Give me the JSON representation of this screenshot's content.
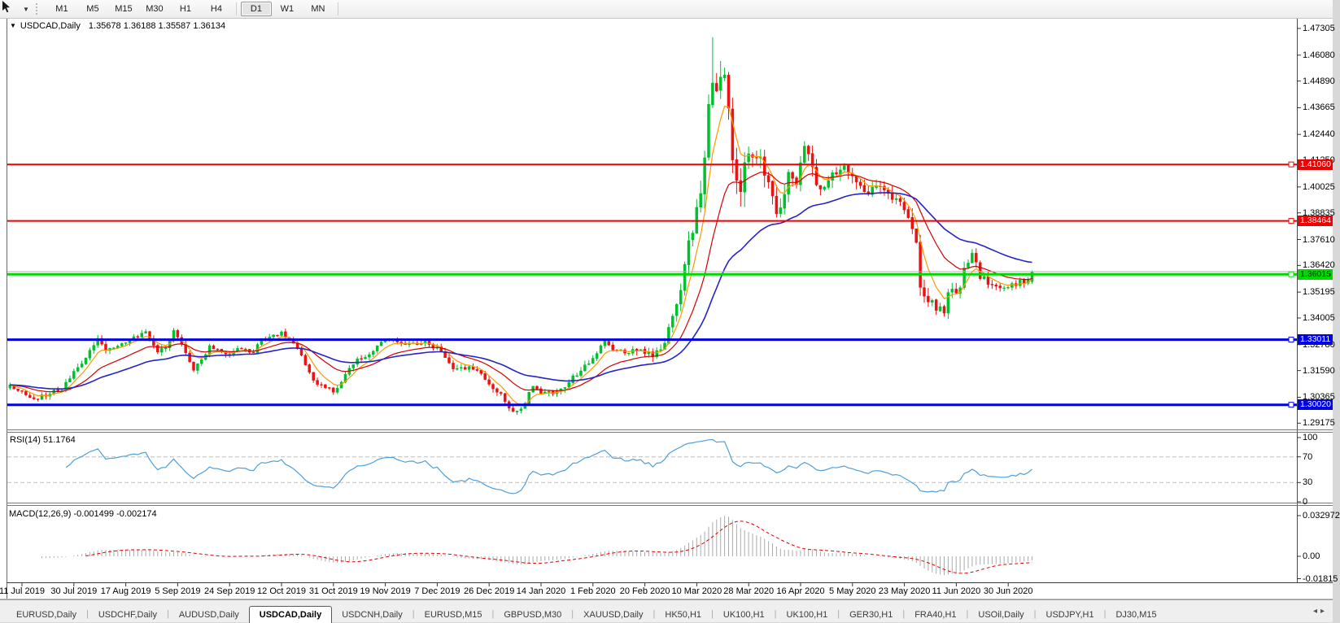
{
  "toolbar": {
    "timeframes": [
      "M1",
      "M5",
      "M15",
      "M30",
      "H1",
      "H4",
      "D1",
      "W1",
      "MN"
    ],
    "active_timeframe": "D1"
  },
  "chart": {
    "title": "USDCAD,Daily",
    "ohlc_text": "1.35678 1.36188 1.35587 1.36134",
    "rsi_label": "RSI(14) 51.1764",
    "macd_label": "MACD(12,26,9) -0.001499 -0.002174"
  },
  "chart_data": {
    "type": "candlestick",
    "symbol": "USDCAD",
    "timeframe": "Daily",
    "last_bar_ohlc": {
      "open": 1.35678,
      "high": 1.36188,
      "low": 1.35587,
      "close": 1.36134
    },
    "up_color": "#00C02E",
    "down_color": "#EE1111",
    "price_ticks": [
      "1.47305",
      "1.46080",
      "1.44890",
      "1.43665",
      "1.42440",
      "1.41250",
      "1.40025",
      "1.38835",
      "1.37610",
      "1.36420",
      "1.35195",
      "1.34005",
      "1.32780",
      "1.31590",
      "1.30365",
      "1.29175"
    ],
    "date_ticks": [
      "11 Jul 2019",
      "30 Jul 2019",
      "17 Aug 2019",
      "5 Sep 2019",
      "24 Sep 2019",
      "12 Oct 2019",
      "31 Oct 2019",
      "19 Nov 2019",
      "7 Dec 2019",
      "26 Dec 2019",
      "14 Jan 2020",
      "1 Feb 2020",
      "20 Feb 2020",
      "10 Mar 2020",
      "28 Mar 2020",
      "16 Apr 2020",
      "5 May 2020",
      "23 May 2020",
      "11 Jun 2020",
      "30 Jun 2020"
    ],
    "horizontal_lines": [
      {
        "price": 1.4106,
        "label": "1.41060",
        "color": "#EE0000",
        "text_color": "#ffffff",
        "width": 2
      },
      {
        "price": 1.38464,
        "label": "1.38464",
        "color": "#EE0000",
        "text_color": "#ffffff",
        "width": 2
      },
      {
        "price": 1.36015,
        "label": "1.36015",
        "color": "#00D900",
        "text_color": "#000000",
        "width": 3
      },
      {
        "price": 1.33011,
        "label": "1.33011",
        "color": "#0000E6",
        "text_color": "#ffffff",
        "width": 3
      },
      {
        "price": 1.3002,
        "label": "1.30020",
        "color": "#0000E6",
        "text_color": "#ffffff",
        "width": 3
      }
    ],
    "bid_price": 1.36134,
    "bid_line_color": "#b3b3b3",
    "moving_averages": [
      {
        "period": 6,
        "color": "#FF9800",
        "width": 1.2
      },
      {
        "period": 18,
        "color": "#D40000",
        "width": 1.2
      },
      {
        "period": 42,
        "color": "#2424C8",
        "width": 1.6
      }
    ],
    "rsi": {
      "period": 14,
      "value": 51.1764,
      "color": "#4D9FDC",
      "levels": [
        70,
        30
      ],
      "axis_ticks": [
        "100",
        "70",
        "30",
        "0"
      ]
    },
    "macd": {
      "fast": 12,
      "slow": 26,
      "signal": 9,
      "main_value": -0.001499,
      "signal_value": -0.002174,
      "hist_color": "#ABABAB",
      "signal_color": "#E00000",
      "axis_ticks": [
        "0.032972",
        "0.00",
        "-0.01815"
      ]
    },
    "first_bar": -3,
    "last_bar": 253,
    "close_keypoints": [
      [
        -3,
        1.3085
      ],
      [
        0,
        1.306
      ],
      [
        3,
        1.3028
      ],
      [
        6,
        1.3045
      ],
      [
        10,
        1.3078
      ],
      [
        14,
        1.317
      ],
      [
        17,
        1.3248
      ],
      [
        19,
        1.3305
      ],
      [
        21,
        1.3258
      ],
      [
        23,
        1.3262
      ],
      [
        26,
        1.329
      ],
      [
        29,
        1.332
      ],
      [
        31,
        1.3332
      ],
      [
        34,
        1.3245
      ],
      [
        36,
        1.3262
      ],
      [
        38,
        1.3338
      ],
      [
        40,
        1.3282
      ],
      [
        43,
        1.316
      ],
      [
        45,
        1.3205
      ],
      [
        47,
        1.3268
      ],
      [
        50,
        1.3245
      ],
      [
        52,
        1.3238
      ],
      [
        54,
        1.3262
      ],
      [
        56,
        1.325
      ],
      [
        58,
        1.3248
      ],
      [
        60,
        1.3305
      ],
      [
        63,
        1.3318
      ],
      [
        65,
        1.3332
      ],
      [
        68,
        1.3288
      ],
      [
        70,
        1.3232
      ],
      [
        72,
        1.3152
      ],
      [
        74,
        1.3092
      ],
      [
        76,
        1.3078
      ],
      [
        78,
        1.3068
      ],
      [
        80,
        1.3105
      ],
      [
        82,
        1.3172
      ],
      [
        84,
        1.3205
      ],
      [
        86,
        1.3228
      ],
      [
        88,
        1.3252
      ],
      [
        90,
        1.3282
      ],
      [
        93,
        1.3308
      ],
      [
        95,
        1.3288
      ],
      [
        97,
        1.3278
      ],
      [
        99,
        1.3282
      ],
      [
        101,
        1.3288
      ],
      [
        103,
        1.327
      ],
      [
        104,
        1.3258
      ],
      [
        106,
        1.3222
      ],
      [
        108,
        1.3168
      ],
      [
        110,
        1.3175
      ],
      [
        112,
        1.3172
      ],
      [
        114,
        1.3158
      ],
      [
        116,
        1.3122
      ],
      [
        118,
        1.3085
      ],
      [
        120,
        1.3048
      ],
      [
        122,
        1.2985
      ],
      [
        123,
        1.2962
      ],
      [
        125,
        1.2978
      ],
      [
        127,
        1.3052
      ],
      [
        128,
        1.3078
      ],
      [
        130,
        1.3062
      ],
      [
        131,
        1.3052
      ],
      [
        133,
        1.3058
      ],
      [
        135,
        1.3068
      ],
      [
        137,
        1.3108
      ],
      [
        139,
        1.3142
      ],
      [
        141,
        1.3178
      ],
      [
        143,
        1.3222
      ],
      [
        145,
        1.3268
      ],
      [
        146,
        1.3292
      ],
      [
        148,
        1.3262
      ],
      [
        150,
        1.3248
      ],
      [
        152,
        1.3242
      ],
      [
        154,
        1.3252
      ],
      [
        156,
        1.3248
      ],
      [
        158,
        1.3228
      ],
      [
        160,
        1.3262
      ],
      [
        161,
        1.33
      ],
      [
        162,
        1.3355
      ],
      [
        163,
        1.3408
      ],
      [
        164,
        1.3445
      ],
      [
        165,
        1.3528
      ],
      [
        166,
        1.3648
      ],
      [
        167,
        1.3742
      ],
      [
        168,
        1.382
      ],
      [
        169,
        1.3905
      ],
      [
        170,
        1.3995
      ],
      [
        171,
        1.4135
      ],
      [
        172,
        1.4375
      ],
      [
        173,
        1.4508
      ],
      [
        174,
        1.4445
      ],
      [
        175,
        1.4478
      ],
      [
        176,
        1.45
      ],
      [
        177,
        1.4368
      ],
      [
        178,
        1.4162
      ],
      [
        179,
        1.4005
      ],
      [
        180,
        1.3992
      ],
      [
        181,
        1.4082
      ],
      [
        182,
        1.4188
      ],
      [
        183,
        1.4135
      ],
      [
        184,
        1.4158
      ],
      [
        185,
        1.4112
      ],
      [
        186,
        1.4082
      ],
      [
        187,
        1.4002
      ],
      [
        188,
        1.3955
      ],
      [
        189,
        1.3902
      ],
      [
        190,
        1.3885
      ],
      [
        191,
        1.3988
      ],
      [
        192,
        1.4082
      ],
      [
        193,
        1.4038
      ],
      [
        194,
        1.4002
      ],
      [
        195,
        1.4115
      ],
      [
        196,
        1.419
      ],
      [
        197,
        1.4155
      ],
      [
        198,
        1.4095
      ],
      [
        199,
        1.4032
      ],
      [
        200,
        1.399
      ],
      [
        202,
        1.4035
      ],
      [
        204,
        1.408
      ],
      [
        206,
        1.4112
      ],
      [
        208,
        1.4055
      ],
      [
        210,
        1.4008
      ],
      [
        212,
        1.3982
      ],
      [
        214,
        1.4018
      ],
      [
        216,
        1.3998
      ],
      [
        218,
        1.3962
      ],
      [
        220,
        1.3935
      ],
      [
        221,
        1.39
      ],
      [
        222,
        1.3855
      ],
      [
        223,
        1.3812
      ],
      [
        224,
        1.3768
      ],
      [
        225,
        1.3555
      ],
      [
        226,
        1.352
      ],
      [
        227,
        1.3495
      ],
      [
        228,
        1.3478
      ],
      [
        229,
        1.3418
      ],
      [
        230,
        1.3462
      ],
      [
        231,
        1.3438
      ],
      [
        232,
        1.3505
      ],
      [
        233,
        1.3542
      ],
      [
        234,
        1.3522
      ],
      [
        235,
        1.3552
      ],
      [
        236,
        1.3618
      ],
      [
        237,
        1.3652
      ],
      [
        238,
        1.3688
      ],
      [
        239,
        1.3658
      ],
      [
        240,
        1.3582
      ],
      [
        241,
        1.36
      ],
      [
        242,
        1.3556
      ],
      [
        243,
        1.3548
      ],
      [
        244,
        1.3545
      ],
      [
        245,
        1.355
      ],
      [
        246,
        1.3528
      ],
      [
        247,
        1.355
      ],
      [
        248,
        1.3558
      ],
      [
        249,
        1.354
      ],
      [
        250,
        1.3565
      ],
      [
        251,
        1.3548
      ],
      [
        252,
        1.3572
      ],
      [
        253,
        1.36134
      ]
    ],
    "volatility_keypoints": [
      [
        -3,
        0.0042
      ],
      [
        40,
        0.004
      ],
      [
        80,
        0.0038
      ],
      [
        120,
        0.0046
      ],
      [
        150,
        0.0046
      ],
      [
        158,
        0.0055
      ],
      [
        163,
        0.0075
      ],
      [
        167,
        0.012
      ],
      [
        171,
        0.0165
      ],
      [
        175,
        0.023
      ],
      [
        178,
        0.0195
      ],
      [
        182,
        0.0165
      ],
      [
        187,
        0.0135
      ],
      [
        193,
        0.0115
      ],
      [
        200,
        0.0105
      ],
      [
        207,
        0.0092
      ],
      [
        215,
        0.0085
      ],
      [
        221,
        0.0095
      ],
      [
        225,
        0.0105
      ],
      [
        229,
        0.0085
      ],
      [
        235,
        0.0075
      ],
      [
        241,
        0.0062
      ],
      [
        246,
        0.0052
      ],
      [
        251,
        0.0048
      ],
      [
        253,
        0.006
      ]
    ],
    "forced_bars": {
      "123": {
        "l": 1.298
      },
      "173": {
        "h": 1.469
      },
      "253": {
        "o": 1.35678,
        "h": 1.36188,
        "l": 1.35587,
        "c": 1.36134
      }
    }
  },
  "tabs": {
    "items": [
      "EURUSD,Daily",
      "USDCHF,Daily",
      "AUDUSD,Daily",
      "USDCAD,Daily",
      "USDCNH,Daily",
      "EURUSD,M15",
      "GBPUSD,M30",
      "XAUUSD,Daily",
      "HK50,H1",
      "UK100,H1",
      "UK100,H1",
      "GER30,H1",
      "FRA40,H1",
      "USOil,Daily",
      "USDJPY,H1",
      "DJ30,M15"
    ],
    "active": "USDCAD,Daily"
  }
}
